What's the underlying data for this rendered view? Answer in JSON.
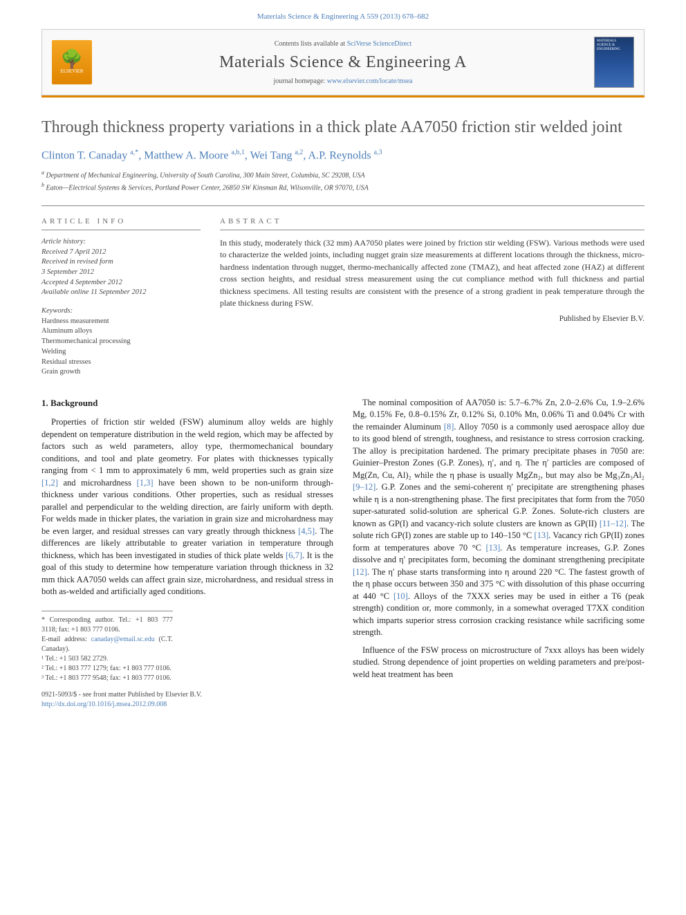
{
  "header": {
    "citation": "Materials Science & Engineering A 559 (2013) 678–682",
    "citation_link": "Materials Science & Engineering A"
  },
  "banner": {
    "elsevier_label": "ELSEVIER",
    "contents_prefix": "Contents lists available at ",
    "contents_link": "SciVerse ScienceDirect",
    "journal_name": "Materials Science & Engineering A",
    "homepage_prefix": "journal homepage: ",
    "homepage_link": "www.elsevier.com/locate/msea",
    "cover_text": "MATERIALS SCIENCE & ENGINEERING"
  },
  "article": {
    "title": "Through thickness property variations in a thick plate AA7050 friction stir welded joint",
    "authors_html": "Clinton T. Canaday <sup>a,*</sup>, Matthew A. Moore <sup>a,b,1</sup>, Wei Tang <sup>a,2</sup>, A.P. Reynolds <sup>a,3</sup>",
    "affiliations": {
      "a": "Department of Mechanical Engineering, University of South Carolina, 300 Main Street, Columbia, SC 29208, USA",
      "b": "Eaton—Electrical Systems & Services, Portland Power Center, 26850 SW Kinsman Rd, Wilsonville, OR 97070, USA"
    }
  },
  "info": {
    "label": "ARTICLE INFO",
    "history_head": "Article history:",
    "history": [
      "Received 7 April 2012",
      "Received in revised form",
      "3 September 2012",
      "Accepted 4 September 2012",
      "Available online 11 September 2012"
    ],
    "keywords_head": "Keywords:",
    "keywords": [
      "Hardness measurement",
      "Aluminum alloys",
      "Thermomechanical processing",
      "Welding",
      "Residual stresses",
      "Grain growth"
    ]
  },
  "abstract": {
    "label": "ABSTRACT",
    "text": "In this study, moderately thick (32 mm) AA7050 plates were joined by friction stir welding (FSW). Various methods were used to characterize the welded joints, including nugget grain size measurements at different locations through the thickness, micro-hardness indentation through nugget, thermo-mechanically affected zone (TMAZ), and heat affected zone (HAZ) at different cross section heights, and residual stress measurement using the cut compliance method with full thickness and partial thickness specimens. All testing results are consistent with the presence of a strong gradient in peak temperature through the plate thickness during FSW.",
    "published_by": "Published by Elsevier B.V."
  },
  "body": {
    "section_heading": "1.  Background",
    "left_para": "Properties of friction stir welded (FSW) aluminum alloy welds are highly dependent on temperature distribution in the weld region, which may be affected by factors such as weld parameters, alloy type, thermomechanical boundary conditions, and tool and plate geometry. For plates with thicknesses typically ranging from < 1 mm to approximately 6 mm, weld properties such as grain size [1,2] and microhardness [1,3] have been shown to be non-uniform through-thickness under various conditions. Other properties, such as residual stresses parallel and perpendicular to the welding direction, are fairly uniform with depth. For welds made in thicker plates, the variation in grain size and microhardness may be even larger, and residual stresses can vary greatly through thickness [4,5]. The differences are likely attributable to greater variation in temperature through thickness, which has been investigated in studies of thick plate welds [6,7]. It is the goal of this study to determine how temperature variation through thickness in 32 mm thick AA7050 welds can affect grain size, microhardness, and residual stress in both as-welded and artificially aged conditions.",
    "right_para1": "The nominal composition of AA7050 is: 5.7–6.7% Zn, 2.0–2.6% Cu, 1.9–2.6% Mg, 0.15% Fe, 0.8–0.15% Zr, 0.12% Si, 0.10% Mn, 0.06% Ti and 0.04% Cr with the remainder Aluminum [8]. Alloy 7050 is a commonly used aerospace alloy due to its good blend of strength, toughness, and resistance to stress corrosion cracking. The alloy is precipitation hardened. The primary precipitate phases in 7050 are: Guinier–Preston Zones (G.P. Zones), η′, and η. The η′ particles are composed of Mg(Zn, Cu, Al)₂ while the η phase is usually MgZn₂, but may also be Mg₃Zn₃Al₂ [9–12]. G.P. Zones and the semi-coherent η′ precipitate are strengthening phases while η is a non-strengthening phase. The first precipitates that form from the 7050 super-saturated solid-solution are spherical G.P. Zones. Solute-rich clusters are known as GP(I) and vacancy-rich solute clusters are known as GP(II) [11–12]. The solute rich GP(I) zones are stable up to 140–150 °C [13]. Vacancy rich GP(II) zones form at temperatures above 70 °C [13]. As temperature increases, G.P. Zones dissolve and η′ precipitates form, becoming the dominant strengthening precipitate [12]. The η′ phase starts transforming into η around 220 °C. The fastest growth of the η phase occurs between 350 and 375 °C with dissolution of this phase occurring at 440 °C [10]. Alloys of the 7XXX series may be used in either a T6 (peak strength) condition or, more commonly, in a somewhat overaged T7XX condition which imparts superior stress corrosion cracking resistance while sacrificing some strength.",
    "right_para2": "Influence of the FSW process on microstructure of 7xxx alloys has been widely studied. Strong dependence of joint properties on welding parameters and pre/post-weld heat treatment has been"
  },
  "footnotes": {
    "corr": "* Corresponding author. Tel.: +1 803 777 3118; fax: +1 803 777 0106.",
    "email_label": "E-mail address:",
    "email": "canaday@email.sc.edu",
    "email_suffix": " (C.T. Canaday).",
    "fn1": "¹ Tel.: +1 503 582 2729.",
    "fn2": "² Tel.: +1 803 777 1279; fax: +1 803 777 0106.",
    "fn3": "³ Tel.: +1 803 777 9548; fax: +1 803 777 0106."
  },
  "footer": {
    "issn_line": "0921-5093/$ - see front matter Published by Elsevier B.V.",
    "doi": "http://dx.doi.org/10.1016/j.msea.2012.09.008"
  },
  "colors": {
    "link": "#4a7db8",
    "accent": "#e08500",
    "text": "#333333"
  }
}
